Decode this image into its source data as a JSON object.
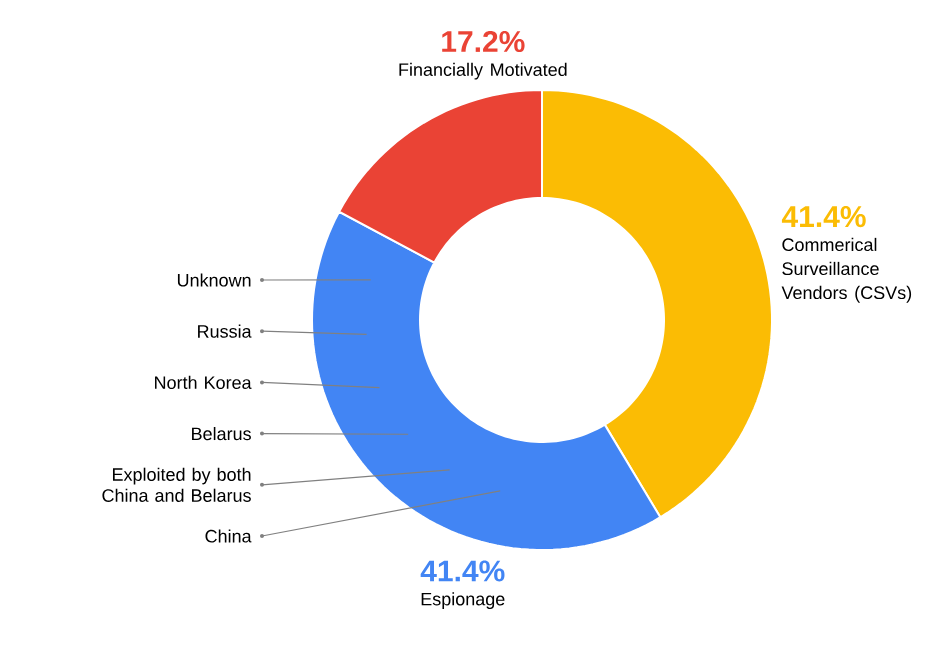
{
  "chart_data": {
    "type": "donut",
    "categories": [
      "Commerical Surveillance Vendors (CSVs)",
      "Espionage",
      "Financially Motivated"
    ],
    "values": [
      41.4,
      41.4,
      17.2
    ],
    "value_labels": [
      "41.4%",
      "41.4%",
      "17.2%"
    ],
    "colors": [
      "#fbbc04",
      "#4285f4",
      "#ea4335"
    ],
    "annotations": [
      "Unknown",
      "Russia",
      "North Korea",
      "Belarus",
      "Exploited by both China and Belarus",
      "China"
    ]
  }
}
